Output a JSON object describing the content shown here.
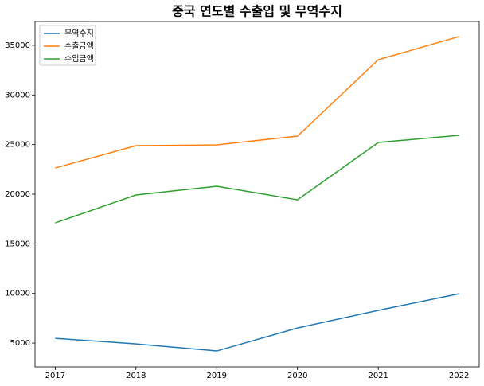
{
  "chart_data": {
    "type": "line",
    "title": "중국 연도별 수출입 및 무역수지",
    "x": [
      2017,
      2018,
      2019,
      2020,
      2021,
      2022
    ],
    "series": [
      {
        "name": "무역수지",
        "color": "#1f77b4",
        "values": [
          5480,
          4920,
          4200,
          6520,
          8290,
          9970
        ]
      },
      {
        "name": "수출금액",
        "color": "#ff7f0e",
        "values": [
          22640,
          24890,
          24970,
          25850,
          33550,
          35880
        ]
      },
      {
        "name": "수입금액",
        "color": "#2ca02c",
        "values": [
          17110,
          19920,
          20800,
          19430,
          25210,
          25930
        ]
      }
    ],
    "xlim": [
      2016.75,
      2022.25
    ],
    "xticks": [
      2017,
      2018,
      2019,
      2020,
      2021,
      2022
    ],
    "ylim": [
      2600,
      37400
    ],
    "yticks": [
      5000,
      10000,
      15000,
      20000,
      25000,
      30000,
      35000
    ],
    "grid": false,
    "legend": "upper left"
  }
}
